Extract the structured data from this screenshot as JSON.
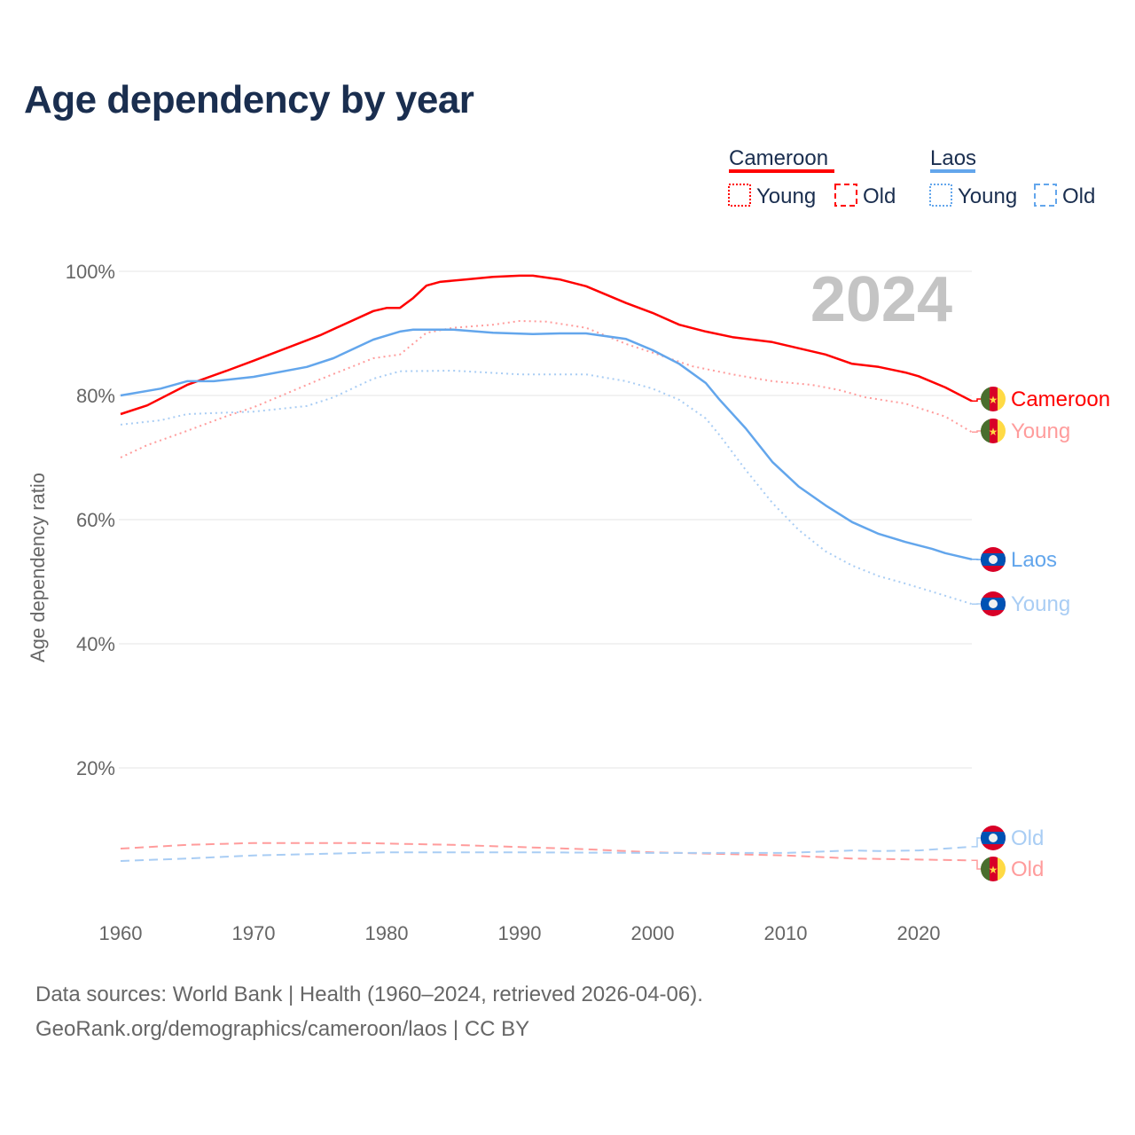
{
  "chart_data": {
    "type": "line",
    "title": "Age dependency by year",
    "ylabel": "Age dependency ratio",
    "xlabel": "",
    "xlim": [
      1960,
      2024
    ],
    "ylim": [
      0,
      100
    ],
    "x_ticks": [
      "1960",
      "1970",
      "1980",
      "1990",
      "2000",
      "2010",
      "2020"
    ],
    "y_ticks": [
      "20%",
      "40%",
      "60%",
      "80%",
      "100%"
    ],
    "year_watermark": "2024",
    "legend": {
      "placement": "top-right",
      "groups": [
        {
          "country": "Cameroon",
          "color": "#ff0000",
          "items": [
            "Young",
            "Old"
          ]
        },
        {
          "country": "Laos",
          "color": "#63a6ec",
          "items": [
            "Young",
            "Old"
          ]
        }
      ]
    },
    "series": [
      {
        "name": "Cameroon",
        "end_label": "Cameroon",
        "flag": "cameroon",
        "color": "#ff0000",
        "style": "solid",
        "points": [
          [
            1960,
            77.0
          ],
          [
            1962,
            78.4
          ],
          [
            1965,
            81.7
          ],
          [
            1968,
            84.0
          ],
          [
            1970,
            85.6
          ],
          [
            1975,
            89.7
          ],
          [
            1979,
            93.6
          ],
          [
            1980,
            94.1
          ],
          [
            1981,
            94.1
          ],
          [
            1982,
            95.7
          ],
          [
            1983,
            97.7
          ],
          [
            1984,
            98.3
          ],
          [
            1986,
            98.7
          ],
          [
            1988,
            99.1
          ],
          [
            1990,
            99.3
          ],
          [
            1991,
            99.3
          ],
          [
            1993,
            98.7
          ],
          [
            1995,
            97.6
          ],
          [
            1998,
            94.9
          ],
          [
            2000,
            93.3
          ],
          [
            2002,
            91.4
          ],
          [
            2004,
            90.3
          ],
          [
            2006,
            89.4
          ],
          [
            2009,
            88.6
          ],
          [
            2011,
            87.6
          ],
          [
            2013,
            86.6
          ],
          [
            2015,
            85.1
          ],
          [
            2017,
            84.6
          ],
          [
            2019,
            83.7
          ],
          [
            2020,
            83.1
          ],
          [
            2022,
            81.3
          ],
          [
            2024,
            79.1
          ]
        ]
      },
      {
        "name": "Cameroon Young",
        "end_label": "Young",
        "flag": "cameroon",
        "color": "#ff9c9c",
        "style": "dotted",
        "points": [
          [
            1960,
            70.0
          ],
          [
            1962,
            72.0
          ],
          [
            1965,
            74.3
          ],
          [
            1968,
            76.7
          ],
          [
            1970,
            78.1
          ],
          [
            1975,
            82.6
          ],
          [
            1979,
            86.0
          ],
          [
            1981,
            86.6
          ],
          [
            1983,
            90.1
          ],
          [
            1985,
            90.9
          ],
          [
            1988,
            91.4
          ],
          [
            1990,
            92.0
          ],
          [
            1992,
            91.9
          ],
          [
            1995,
            90.9
          ],
          [
            1998,
            88.3
          ],
          [
            2000,
            86.9
          ],
          [
            2003,
            84.7
          ],
          [
            2006,
            83.4
          ],
          [
            2009,
            82.3
          ],
          [
            2012,
            81.7
          ],
          [
            2014,
            80.9
          ],
          [
            2016,
            79.7
          ],
          [
            2019,
            78.7
          ],
          [
            2022,
            76.6
          ],
          [
            2024,
            74.1
          ]
        ]
      },
      {
        "name": "Cameroon Old",
        "end_label": "Old",
        "flag": "cameroon",
        "color": "#ff9c9c",
        "style": "dashed",
        "points": [
          [
            1960,
            7.0
          ],
          [
            1965,
            7.6
          ],
          [
            1970,
            7.9
          ],
          [
            1978,
            7.9
          ],
          [
            1985,
            7.6
          ],
          [
            1995,
            6.9
          ],
          [
            2000,
            6.4
          ],
          [
            2010,
            5.9
          ],
          [
            2015,
            5.4
          ],
          [
            2024,
            5.1
          ]
        ]
      },
      {
        "name": "Laos",
        "end_label": "Laos",
        "flag": "laos",
        "color": "#63a6ec",
        "style": "solid",
        "points": [
          [
            1960,
            80.0
          ],
          [
            1963,
            81.1
          ],
          [
            1965,
            82.3
          ],
          [
            1967,
            82.3
          ],
          [
            1970,
            83.0
          ],
          [
            1974,
            84.6
          ],
          [
            1976,
            86.0
          ],
          [
            1979,
            89.0
          ],
          [
            1981,
            90.3
          ],
          [
            1982,
            90.6
          ],
          [
            1985,
            90.6
          ],
          [
            1988,
            90.1
          ],
          [
            1991,
            89.9
          ],
          [
            1993,
            90.0
          ],
          [
            1995,
            90.0
          ],
          [
            1998,
            89.1
          ],
          [
            2000,
            87.3
          ],
          [
            2002,
            85.1
          ],
          [
            2004,
            82.0
          ],
          [
            2005,
            79.4
          ],
          [
            2007,
            74.7
          ],
          [
            2009,
            69.3
          ],
          [
            2011,
            65.3
          ],
          [
            2013,
            62.3
          ],
          [
            2015,
            59.6
          ],
          [
            2017,
            57.7
          ],
          [
            2019,
            56.4
          ],
          [
            2021,
            55.3
          ],
          [
            2022,
            54.6
          ],
          [
            2024,
            53.6
          ]
        ]
      },
      {
        "name": "Laos Young",
        "end_label": "Young",
        "flag": "laos",
        "color": "#a9cdf4",
        "style": "dotted",
        "points": [
          [
            1960,
            75.3
          ],
          [
            1963,
            76.0
          ],
          [
            1965,
            77.0
          ],
          [
            1970,
            77.4
          ],
          [
            1974,
            78.3
          ],
          [
            1976,
            79.7
          ],
          [
            1979,
            82.7
          ],
          [
            1981,
            83.9
          ],
          [
            1985,
            84.0
          ],
          [
            1990,
            83.4
          ],
          [
            1995,
            83.4
          ],
          [
            1998,
            82.3
          ],
          [
            2000,
            81.1
          ],
          [
            2002,
            79.3
          ],
          [
            2004,
            76.3
          ],
          [
            2005,
            73.7
          ],
          [
            2007,
            68.0
          ],
          [
            2009,
            62.7
          ],
          [
            2011,
            58.3
          ],
          [
            2013,
            54.9
          ],
          [
            2015,
            52.6
          ],
          [
            2017,
            50.9
          ],
          [
            2019,
            49.7
          ],
          [
            2021,
            48.4
          ],
          [
            2024,
            46.4
          ]
        ]
      },
      {
        "name": "Laos Old",
        "end_label": "Old",
        "flag": "laos",
        "color": "#a9cdf4",
        "style": "dashed",
        "points": [
          [
            1960,
            5.0
          ],
          [
            1965,
            5.4
          ],
          [
            1970,
            5.9
          ],
          [
            1980,
            6.4
          ],
          [
            1990,
            6.4
          ],
          [
            2000,
            6.3
          ],
          [
            2010,
            6.3
          ],
          [
            2015,
            6.7
          ],
          [
            2017,
            6.6
          ],
          [
            2020,
            6.7
          ],
          [
            2024,
            7.3
          ]
        ]
      }
    ]
  },
  "footer": {
    "sources": "Data sources: World Bank | Health (1960–2024, retrieved 2026-04-06).",
    "credit": "GeoRank.org/demographics/cameroon/laos | CC BY"
  }
}
